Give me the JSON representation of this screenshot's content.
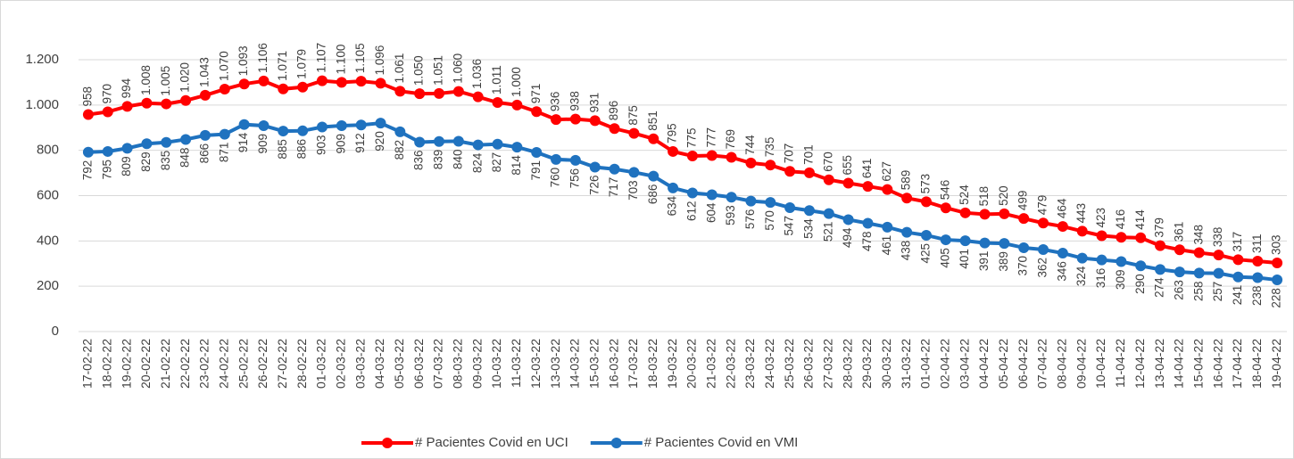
{
  "chart_data": {
    "type": "line",
    "categories": [
      "17-02-22",
      "18-02-22",
      "19-02-22",
      "20-02-22",
      "21-02-22",
      "22-02-22",
      "23-02-22",
      "24-02-22",
      "25-02-22",
      "26-02-22",
      "27-02-22",
      "28-02-22",
      "01-03-22",
      "02-03-22",
      "03-03-22",
      "04-03-22",
      "05-03-22",
      "06-03-22",
      "07-03-22",
      "08-03-22",
      "09-03-22",
      "10-03-22",
      "11-03-22",
      "12-03-22",
      "13-03-22",
      "14-03-22",
      "15-03-22",
      "16-03-22",
      "17-03-22",
      "18-03-22",
      "19-03-22",
      "20-03-22",
      "21-03-22",
      "22-03-22",
      "23-03-22",
      "24-03-22",
      "25-03-22",
      "26-03-22",
      "27-03-22",
      "28-03-22",
      "29-03-22",
      "30-03-22",
      "31-03-22",
      "01-04-22",
      "02-04-22",
      "03-04-22",
      "04-04-22",
      "05-04-22",
      "06-04-22",
      "07-04-22",
      "08-04-22",
      "09-04-22",
      "10-04-22",
      "11-04-22",
      "12-04-22",
      "13-04-22",
      "14-04-22",
      "15-04-22",
      "16-04-22",
      "17-04-22",
      "18-04-22",
      "19-04-22"
    ],
    "series": [
      {
        "name": "# Pacientes Covid en UCI",
        "color": "#ff0000",
        "values": [
          958,
          970,
          994,
          1008,
          1005,
          1020,
          1043,
          1070,
          1093,
          1106,
          1071,
          1079,
          1107,
          1100,
          1105,
          1096,
          1061,
          1050,
          1051,
          1060,
          1036,
          1011,
          1000,
          971,
          936,
          938,
          931,
          896,
          875,
          851,
          795,
          775,
          777,
          769,
          744,
          735,
          707,
          701,
          670,
          655,
          641,
          627,
          589,
          573,
          546,
          524,
          518,
          520,
          499,
          479,
          464,
          443,
          423,
          416,
          414,
          379,
          361,
          348,
          338,
          317,
          311,
          303
        ],
        "value_labels": [
          "958",
          "970",
          "994",
          "1.008",
          "1.005",
          "1.020",
          "1.043",
          "1.070",
          "1.093",
          "1.106",
          "1.071",
          "1.079",
          "1.107",
          "1.100",
          "1.105",
          "1.096",
          "1.061",
          "1.050",
          "1.051",
          "1.060",
          "1.036",
          "1.011",
          "1.000",
          "971",
          "936",
          "938",
          "931",
          "896",
          "875",
          "851",
          "795",
          "775",
          "777",
          "769",
          "744",
          "735",
          "707",
          "701",
          "670",
          "655",
          "641",
          "627",
          "589",
          "573",
          "546",
          "524",
          "518",
          "520",
          "499",
          "479",
          "464",
          "443",
          "423",
          "416",
          "414",
          "379",
          "361",
          "348",
          "338",
          "317",
          "311",
          "303"
        ],
        "label_position": "above"
      },
      {
        "name": "# Pacientes Covid en VMI",
        "color": "#1f72bf",
        "values": [
          792,
          795,
          809,
          829,
          835,
          848,
          866,
          871,
          914,
          909,
          885,
          886,
          903,
          909,
          912,
          920,
          882,
          836,
          839,
          840,
          824,
          827,
          814,
          791,
          760,
          756,
          726,
          717,
          703,
          686,
          634,
          612,
          604,
          593,
          576,
          570,
          547,
          534,
          521,
          494,
          478,
          461,
          438,
          425,
          405,
          401,
          391,
          389,
          370,
          362,
          346,
          324,
          316,
          309,
          290,
          274,
          263,
          258,
          257,
          241,
          238,
          228
        ],
        "label_position": "below"
      }
    ],
    "ylim": [
      0,
      1200
    ],
    "yticks": [
      0,
      200,
      400,
      600,
      800,
      {
        "value": 1000,
        "label": "1.000"
      },
      {
        "value": 1200,
        "label": "1.200"
      }
    ],
    "grid": true,
    "legend": "bottom"
  }
}
